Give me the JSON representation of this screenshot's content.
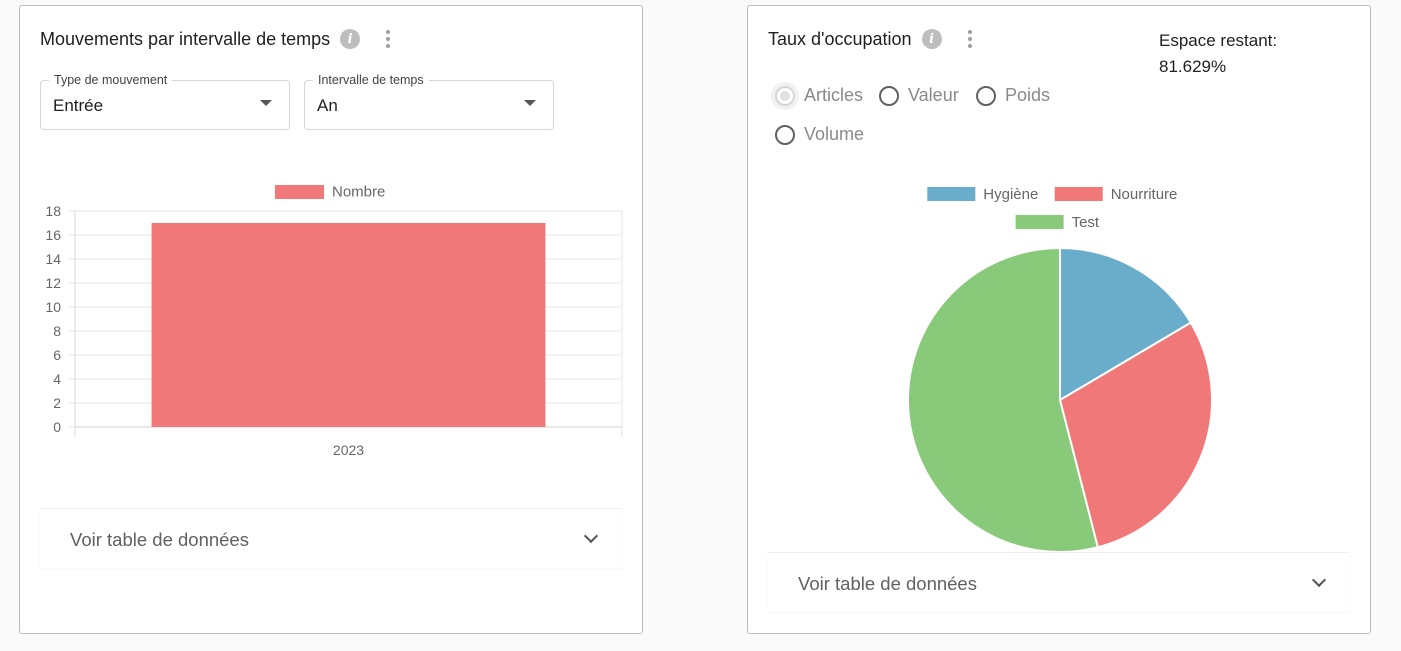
{
  "movements_card": {
    "title": "Mouvements par intervalle de temps",
    "type_select": {
      "label": "Type de mouvement",
      "value": "Entrée"
    },
    "interval_select": {
      "label": "Intervalle de temps",
      "value": "An"
    },
    "data_table_label": "Voir table de données"
  },
  "occupation_card": {
    "title": "Taux d'occupation",
    "remaining_label": "Espace restant:",
    "remaining_value": "81.629%",
    "radio_options": [
      {
        "label": "Articles",
        "selected": true
      },
      {
        "label": "Valeur",
        "selected": false
      },
      {
        "label": "Poids",
        "selected": false
      },
      {
        "label": "Volume",
        "selected": false
      }
    ],
    "data_table_label": "Voir table de données"
  },
  "chart_data": [
    {
      "type": "bar",
      "categories": [
        "2023"
      ],
      "series": [
        {
          "name": "Nombre",
          "values": [
            17
          ],
          "color": "#f07878"
        }
      ],
      "ylim": [
        0,
        18
      ],
      "yticks": [
        0,
        2,
        4,
        6,
        8,
        10,
        12,
        14,
        16,
        18
      ],
      "legend": "top",
      "grid": true
    },
    {
      "type": "pie",
      "labels": [
        "Hygiène",
        "Nourriture",
        "Test"
      ],
      "values": [
        16.5,
        29.5,
        54.0
      ],
      "colors": [
        "#6aadcb",
        "#f07878",
        "#88c97a"
      ],
      "legend": "top"
    }
  ]
}
